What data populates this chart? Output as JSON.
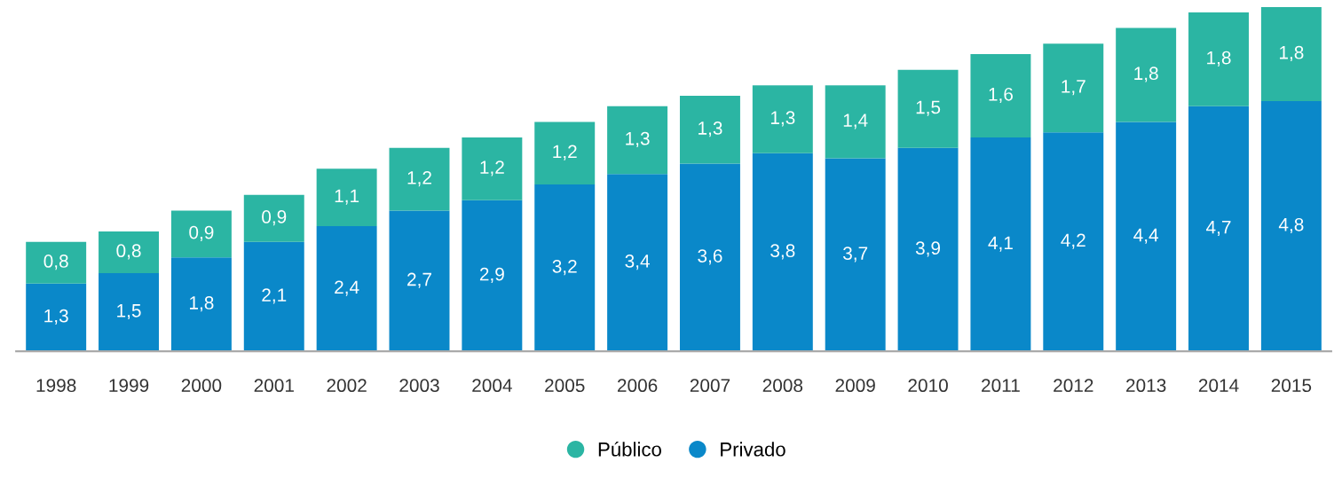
{
  "chart_data": {
    "type": "bar",
    "stacked": true,
    "categories": [
      "1998",
      "1999",
      "2000",
      "2001",
      "2002",
      "2003",
      "2004",
      "2005",
      "2006",
      "2007",
      "2008",
      "2009",
      "2010",
      "2011",
      "2012",
      "2013",
      "2014",
      "2015"
    ],
    "series": [
      {
        "name": "Privado",
        "color": "#0a88c9",
        "values": [
          1.3,
          1.5,
          1.8,
          2.1,
          2.4,
          2.7,
          2.9,
          3.2,
          3.4,
          3.6,
          3.8,
          3.7,
          3.9,
          4.1,
          4.2,
          4.4,
          4.7,
          4.8
        ],
        "value_labels": [
          "1,3",
          "1,5",
          "1,8",
          "2,1",
          "2,4",
          "2,7",
          "2,9",
          "3,2",
          "3,4",
          "3,6",
          "3,8",
          "3,7",
          "3,9",
          "4,1",
          "4,2",
          "4,4",
          "4,7",
          "4,8"
        ]
      },
      {
        "name": "Público",
        "color": "#2bb5a3",
        "values": [
          0.8,
          0.8,
          0.9,
          0.9,
          1.1,
          1.2,
          1.2,
          1.2,
          1.3,
          1.3,
          1.3,
          1.4,
          1.5,
          1.6,
          1.7,
          1.8,
          1.8,
          1.8
        ],
        "value_labels": [
          "0,8",
          "0,8",
          "0,9",
          "0,9",
          "1,1",
          "1,2",
          "1,2",
          "1,2",
          "1,3",
          "1,3",
          "1,3",
          "1,4",
          "1,5",
          "1,6",
          "1,7",
          "1,8",
          "1,8",
          "1,8"
        ]
      }
    ],
    "legend": "bottom",
    "grid": false,
    "tick_labels": "x"
  }
}
